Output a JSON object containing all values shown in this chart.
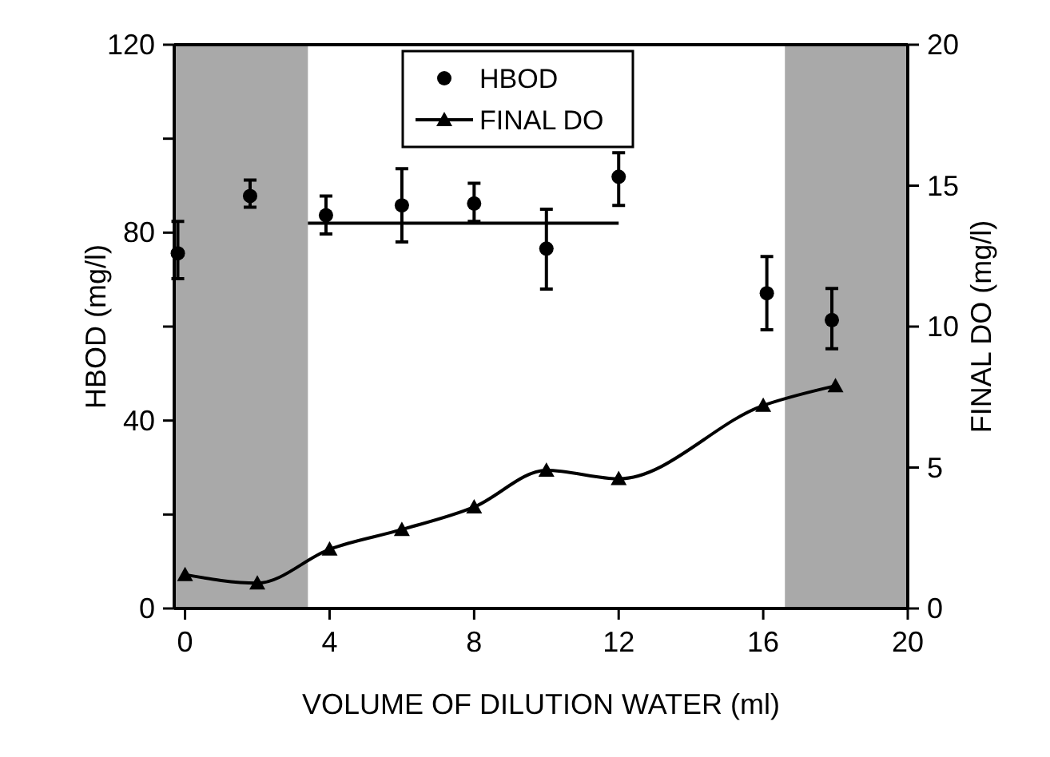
{
  "chart_data": {
    "type": "scatter",
    "xlabel": "VOLUME OF DILUTION WATER (ml)",
    "ylabel": "HBOD (mg/l)",
    "y2label": "FINAL DO (mg/l)",
    "xlim": [
      -0.3,
      20
    ],
    "xticks": [
      0,
      4,
      8,
      12,
      16,
      20
    ],
    "ylim": [
      0,
      120
    ],
    "yticks": [
      0,
      {
        "value": 20,
        "label": null
      },
      40,
      {
        "value": 60,
        "label": null
      },
      80,
      {
        "value": 100,
        "label": null
      },
      120
    ],
    "y2lim": [
      0,
      20
    ],
    "y2ticks": [
      0,
      5,
      10,
      15,
      20
    ],
    "legend": "top",
    "grid": false,
    "bands": [
      {
        "axis": "x",
        "from": -0.3,
        "to": 3.4,
        "color": "#9a9a9a"
      },
      {
        "axis": "x",
        "from": 16.6,
        "to": 20,
        "color": "#9a9a9a"
      }
    ],
    "series": [
      {
        "name": "HBOD",
        "color": "#000000",
        "marker": "circle",
        "x": [
          -0.2,
          1.8,
          3.9,
          6,
          8,
          10,
          12,
          16.1,
          17.9
        ],
        "values": [
          75.6,
          87.8,
          83.7,
          85.8,
          86.2,
          76.6,
          91.9,
          67.1,
          61.4
        ],
        "errors": [
          [
            70.2,
            82.4
          ],
          [
            85.4,
            91.2
          ],
          [
            79.7,
            87.8
          ],
          [
            78,
            93.6
          ],
          [
            82.4,
            90.5
          ],
          [
            68,
            85
          ],
          [
            85.8,
            97
          ],
          [
            59.3,
            74.9
          ],
          [
            55.3,
            68.1
          ]
        ]
      },
      {
        "name": "FINAL DO",
        "type": "line",
        "axis": "y2",
        "color": "#000000",
        "marker": "triangle",
        "line_style": "solid",
        "x": [
          0,
          2,
          4,
          6,
          8,
          10,
          12,
          16,
          18
        ],
        "values": [
          1.2,
          0.9,
          2.1,
          2.8,
          3.6,
          4.9,
          4.6,
          7.2,
          7.9
        ]
      },
      {
        "type": "line",
        "color": "#000000",
        "marker": "none",
        "line_style": "solid",
        "x": [
          3.4,
          12
        ],
        "values": [
          82,
          82
        ]
      }
    ]
  }
}
